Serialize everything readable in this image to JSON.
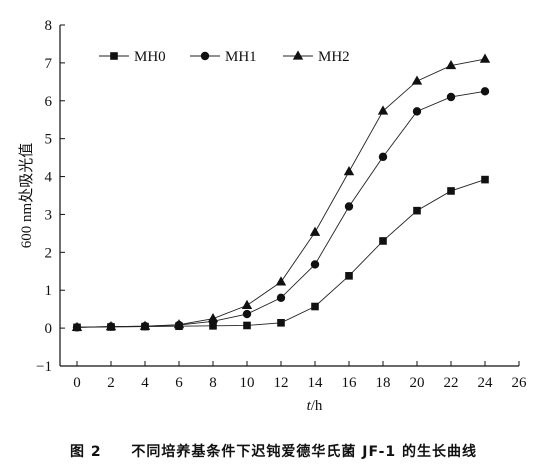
{
  "caption": {
    "figure": "图 2",
    "text": "不同培养基条件下迟钝爱德华氏菌 JF-1 的生长曲线"
  },
  "chart_data": {
    "type": "line",
    "xlabel": "t/h",
    "ylabel": "600 nm处吸光值",
    "xlim": [
      -1,
      26
    ],
    "ylim": [
      -1,
      8
    ],
    "xticks": [
      0,
      2,
      4,
      6,
      8,
      10,
      12,
      14,
      16,
      18,
      20,
      22,
      24,
      26
    ],
    "yticks": [
      -1,
      0,
      1,
      2,
      3,
      4,
      5,
      6,
      7,
      8
    ],
    "x": [
      0,
      2,
      4,
      6,
      8,
      10,
      12,
      14,
      16,
      18,
      20,
      22,
      24
    ],
    "legend_position": "top-left",
    "grid": false,
    "series": [
      {
        "name": "MH0",
        "marker": "square",
        "values": [
          0.02,
          0.03,
          0.04,
          0.05,
          0.06,
          0.07,
          0.14,
          0.57,
          1.38,
          2.3,
          3.1,
          3.62,
          3.92
        ]
      },
      {
        "name": "MH1",
        "marker": "circle",
        "values": [
          0.02,
          0.04,
          0.05,
          0.08,
          0.18,
          0.37,
          0.8,
          1.68,
          3.21,
          4.52,
          5.72,
          6.1,
          6.25
        ]
      },
      {
        "name": "MH2",
        "marker": "triangle",
        "values": [
          0.02,
          0.04,
          0.05,
          0.09,
          0.25,
          0.6,
          1.22,
          2.53,
          4.13,
          5.73,
          6.52,
          6.93,
          7.1
        ]
      }
    ]
  }
}
